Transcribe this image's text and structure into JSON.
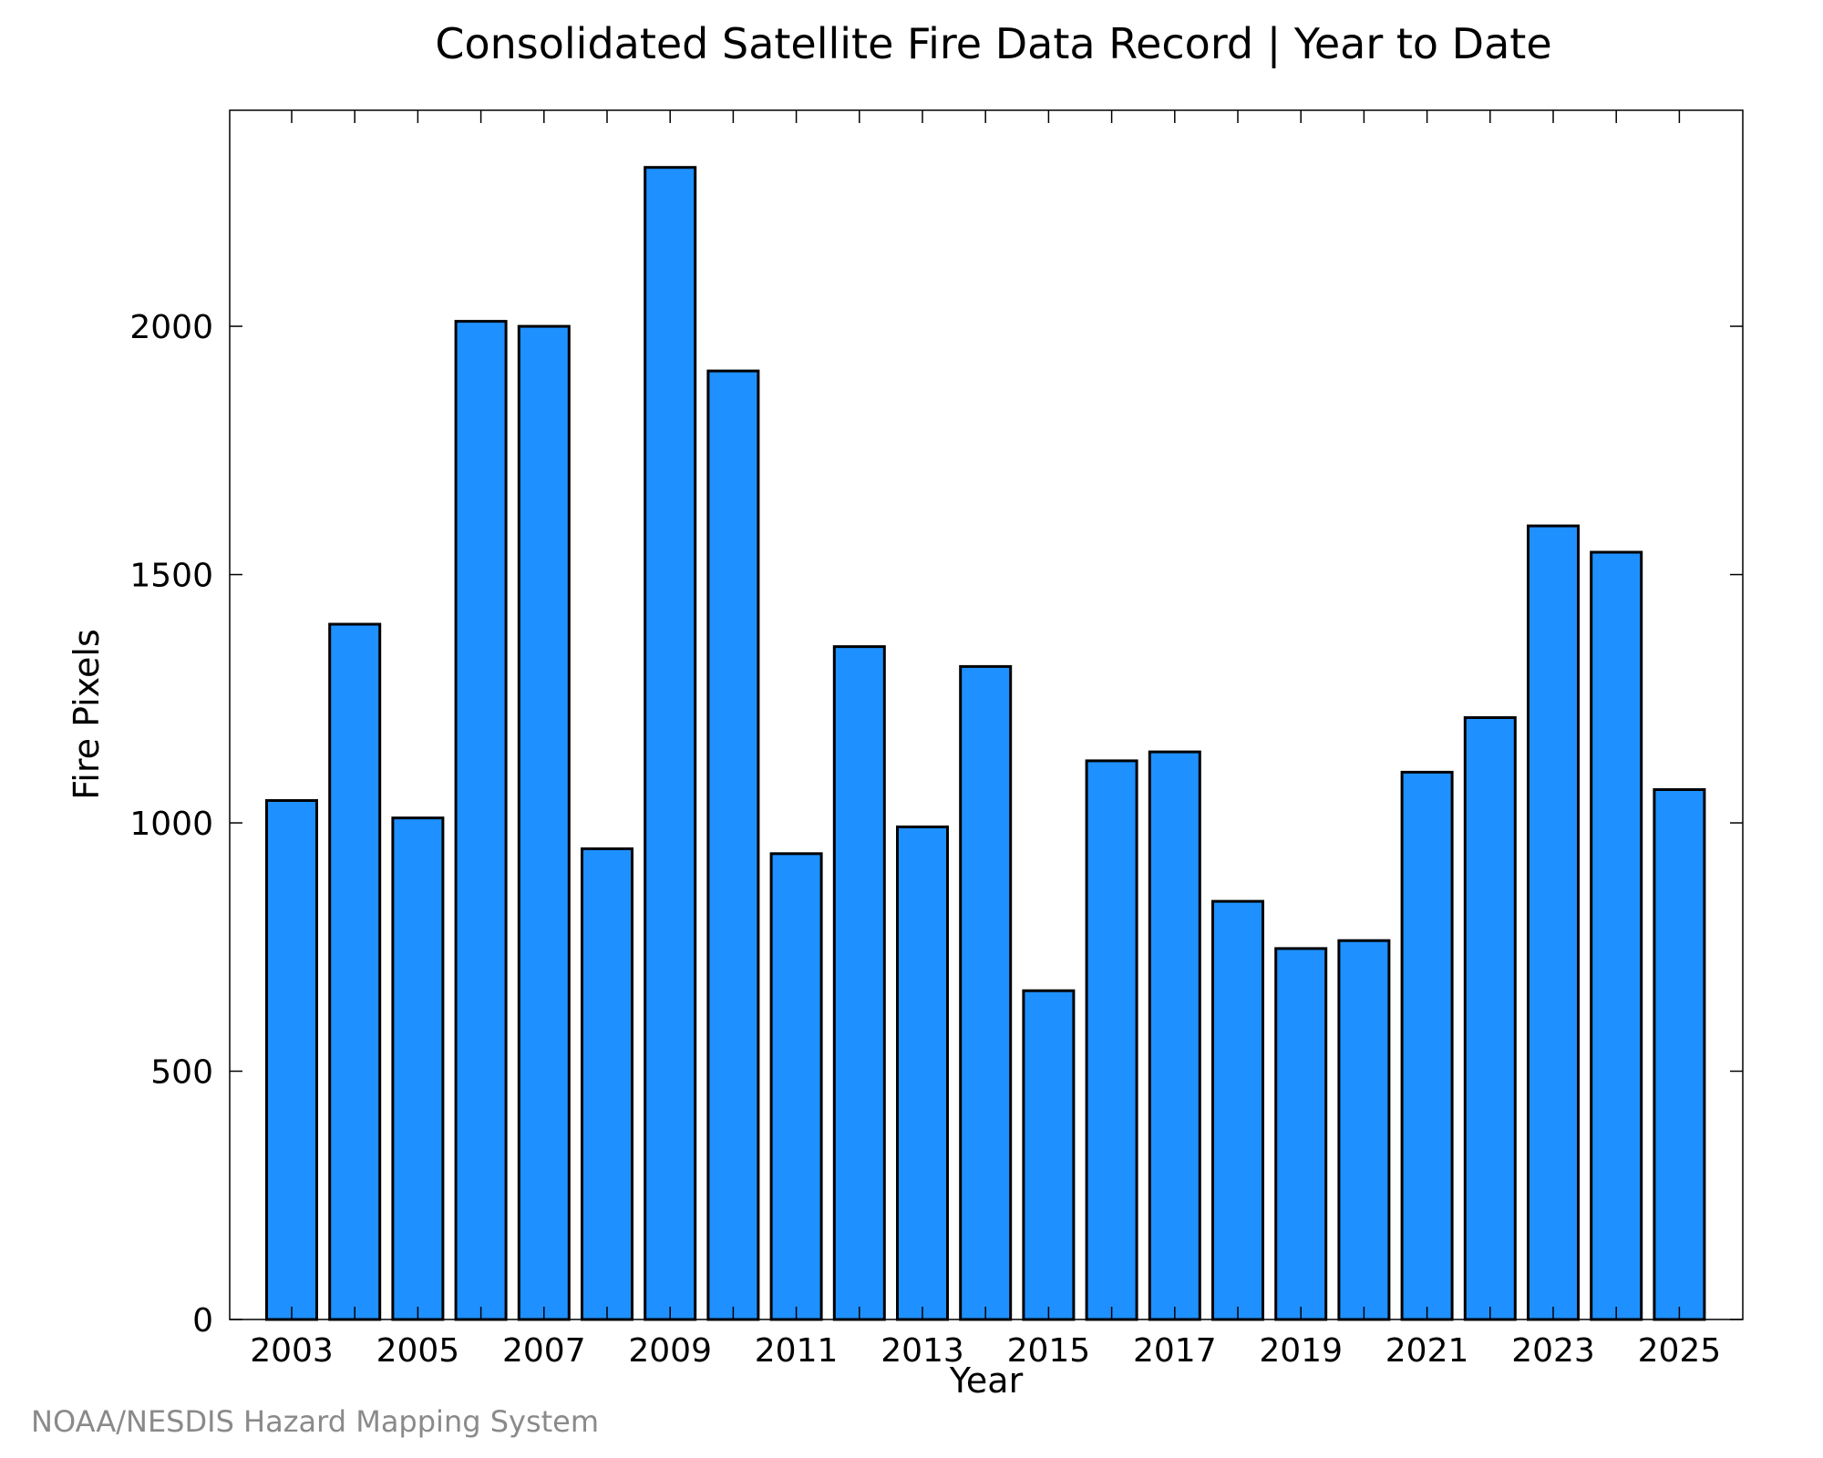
{
  "chart_data": {
    "type": "bar",
    "title": "Consolidated Satellite Fire Data Record | Year to Date",
    "xlabel": "Year",
    "ylabel": "Fire Pixels",
    "source": "NOAA/NESDIS Hazard Mapping System",
    "categories": [
      "2003",
      "2004",
      "2005",
      "2006",
      "2007",
      "2008",
      "2009",
      "2010",
      "2011",
      "2012",
      "2013",
      "2014",
      "2015",
      "2016",
      "2017",
      "2018",
      "2019",
      "2020",
      "2021",
      "2022",
      "2023",
      "2024",
      "2025"
    ],
    "values": [
      1045,
      1400,
      1010,
      2010,
      2000,
      948,
      2320,
      1910,
      938,
      1355,
      992,
      1315,
      662,
      1125,
      1143,
      842,
      747,
      763,
      1102,
      1212,
      1598,
      1545,
      1067
    ],
    "x_tick_labels": [
      "2003",
      "2005",
      "2007",
      "2009",
      "2011",
      "2013",
      "2015",
      "2017",
      "2019",
      "2021",
      "2023",
      "2025"
    ],
    "y_ticks": [
      "0",
      "500",
      "1000",
      "1500",
      "2000"
    ],
    "ylim": [
      0,
      2435
    ],
    "bar_color": "#1e90ff",
    "bar_edge_color": "#000000",
    "grid": false,
    "legend": "none"
  }
}
